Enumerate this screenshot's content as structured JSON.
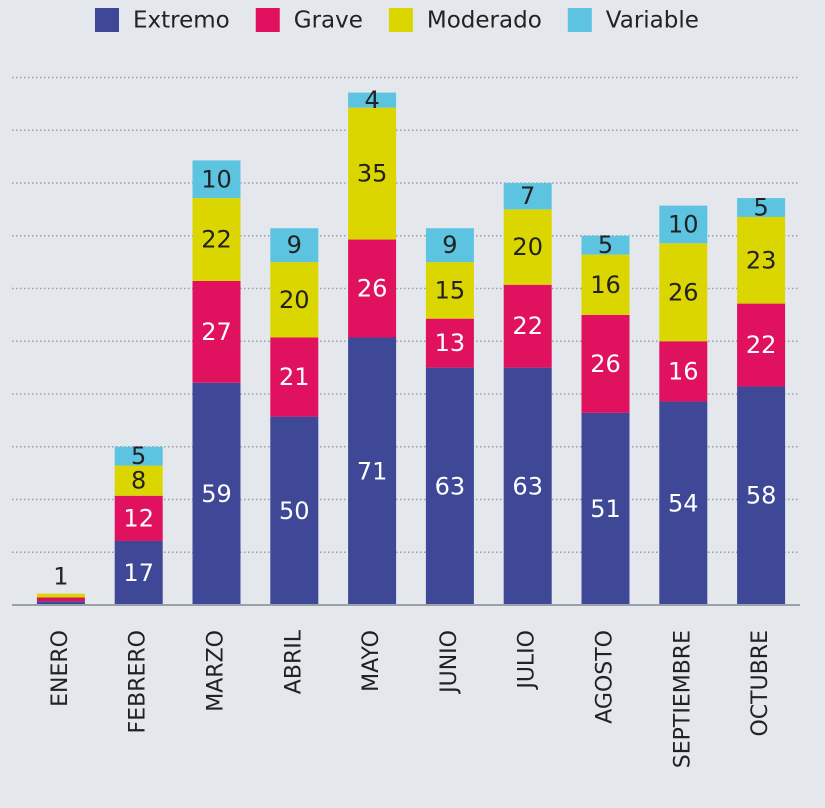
{
  "chart_data": {
    "type": "stacked_bar",
    "categories": [
      "ENERO",
      "FEBRERO",
      "MARZO",
      "ABRIL",
      "MAYO",
      "JUNIO",
      "JULIO",
      "AGOSTO",
      "SEPTIEMBRE",
      "OCTUBRE"
    ],
    "series": [
      {
        "name": "Extremo",
        "color": "#3f4797",
        "values": [
          1,
          17,
          59,
          50,
          71,
          63,
          63,
          51,
          54,
          58
        ],
        "value_labels": [
          null,
          "17",
          "59",
          "50",
          "71",
          "63",
          "63",
          "51",
          "54",
          "58"
        ]
      },
      {
        "name": "Grave",
        "color": "#e0115f",
        "values": [
          1,
          12,
          27,
          21,
          26,
          13,
          22,
          26,
          16,
          22
        ],
        "value_labels": [
          null,
          "12",
          "27",
          "21",
          "26",
          "13",
          "22",
          "26",
          "16",
          "22"
        ]
      },
      {
        "name": "Moderado",
        "color": "#dcd600",
        "values": [
          1,
          8,
          22,
          20,
          35,
          15,
          20,
          16,
          26,
          23
        ]
      },
      {
        "name": "Variable",
        "color": "#5cc3e0",
        "values": [
          null,
          5,
          10,
          9,
          4,
          9,
          7,
          5,
          10,
          5
        ]
      }
    ],
    "ylim": [
      0,
      142
    ],
    "yticks": [
      0,
      14,
      28,
      42,
      56,
      70,
      84,
      98,
      112,
      126,
      140
    ],
    "grid": true,
    "legend": "top"
  }
}
